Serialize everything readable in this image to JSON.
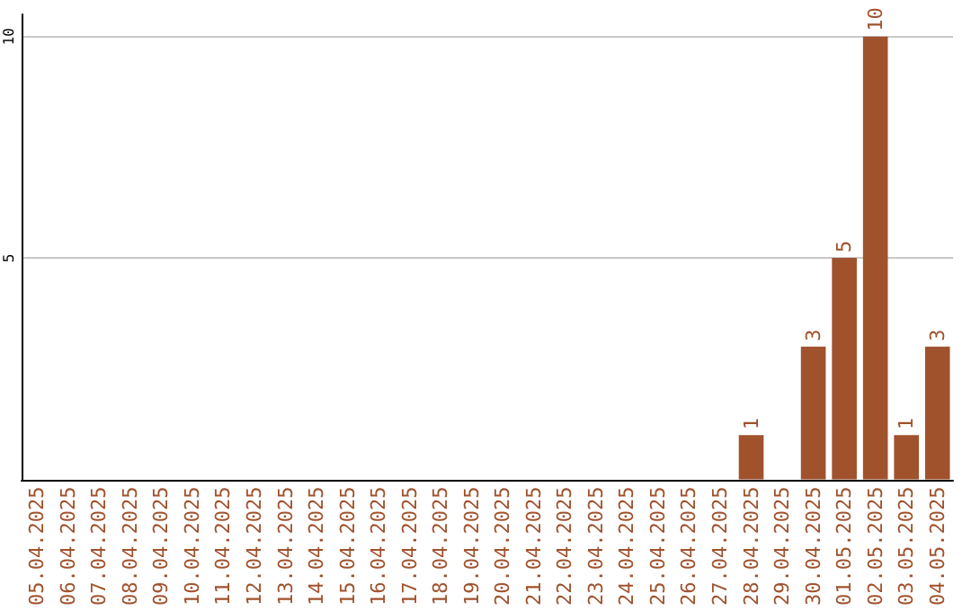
{
  "chart_data": {
    "type": "bar",
    "categories": [
      "05.04.2025",
      "06.04.2025",
      "07.04.2025",
      "08.04.2025",
      "09.04.2025",
      "10.04.2025",
      "11.04.2025",
      "12.04.2025",
      "13.04.2025",
      "14.04.2025",
      "15.04.2025",
      "16.04.2025",
      "17.04.2025",
      "18.04.2025",
      "19.04.2025",
      "20.04.2025",
      "21.04.2025",
      "22.04.2025",
      "23.04.2025",
      "24.04.2025",
      "25.04.2025",
      "26.04.2025",
      "27.04.2025",
      "28.04.2025",
      "29.04.2025",
      "30.04.2025",
      "01.05.2025",
      "02.05.2025",
      "03.05.2025",
      "04.05.2025"
    ],
    "values": [
      0,
      0,
      0,
      0,
      0,
      0,
      0,
      0,
      0,
      0,
      0,
      0,
      0,
      0,
      0,
      0,
      0,
      0,
      0,
      0,
      0,
      0,
      0,
      1,
      0,
      3,
      5,
      10,
      1,
      3
    ],
    "value_labels": [
      null,
      null,
      null,
      null,
      null,
      null,
      null,
      null,
      null,
      null,
      null,
      null,
      null,
      null,
      null,
      null,
      null,
      null,
      null,
      null,
      null,
      null,
      null,
      "1",
      null,
      "3",
      "5",
      "10",
      "1",
      "3"
    ],
    "color": "#a0522d",
    "ylim": [
      0,
      10.5
    ],
    "yticks": [
      5,
      10
    ],
    "grid": "y"
  }
}
